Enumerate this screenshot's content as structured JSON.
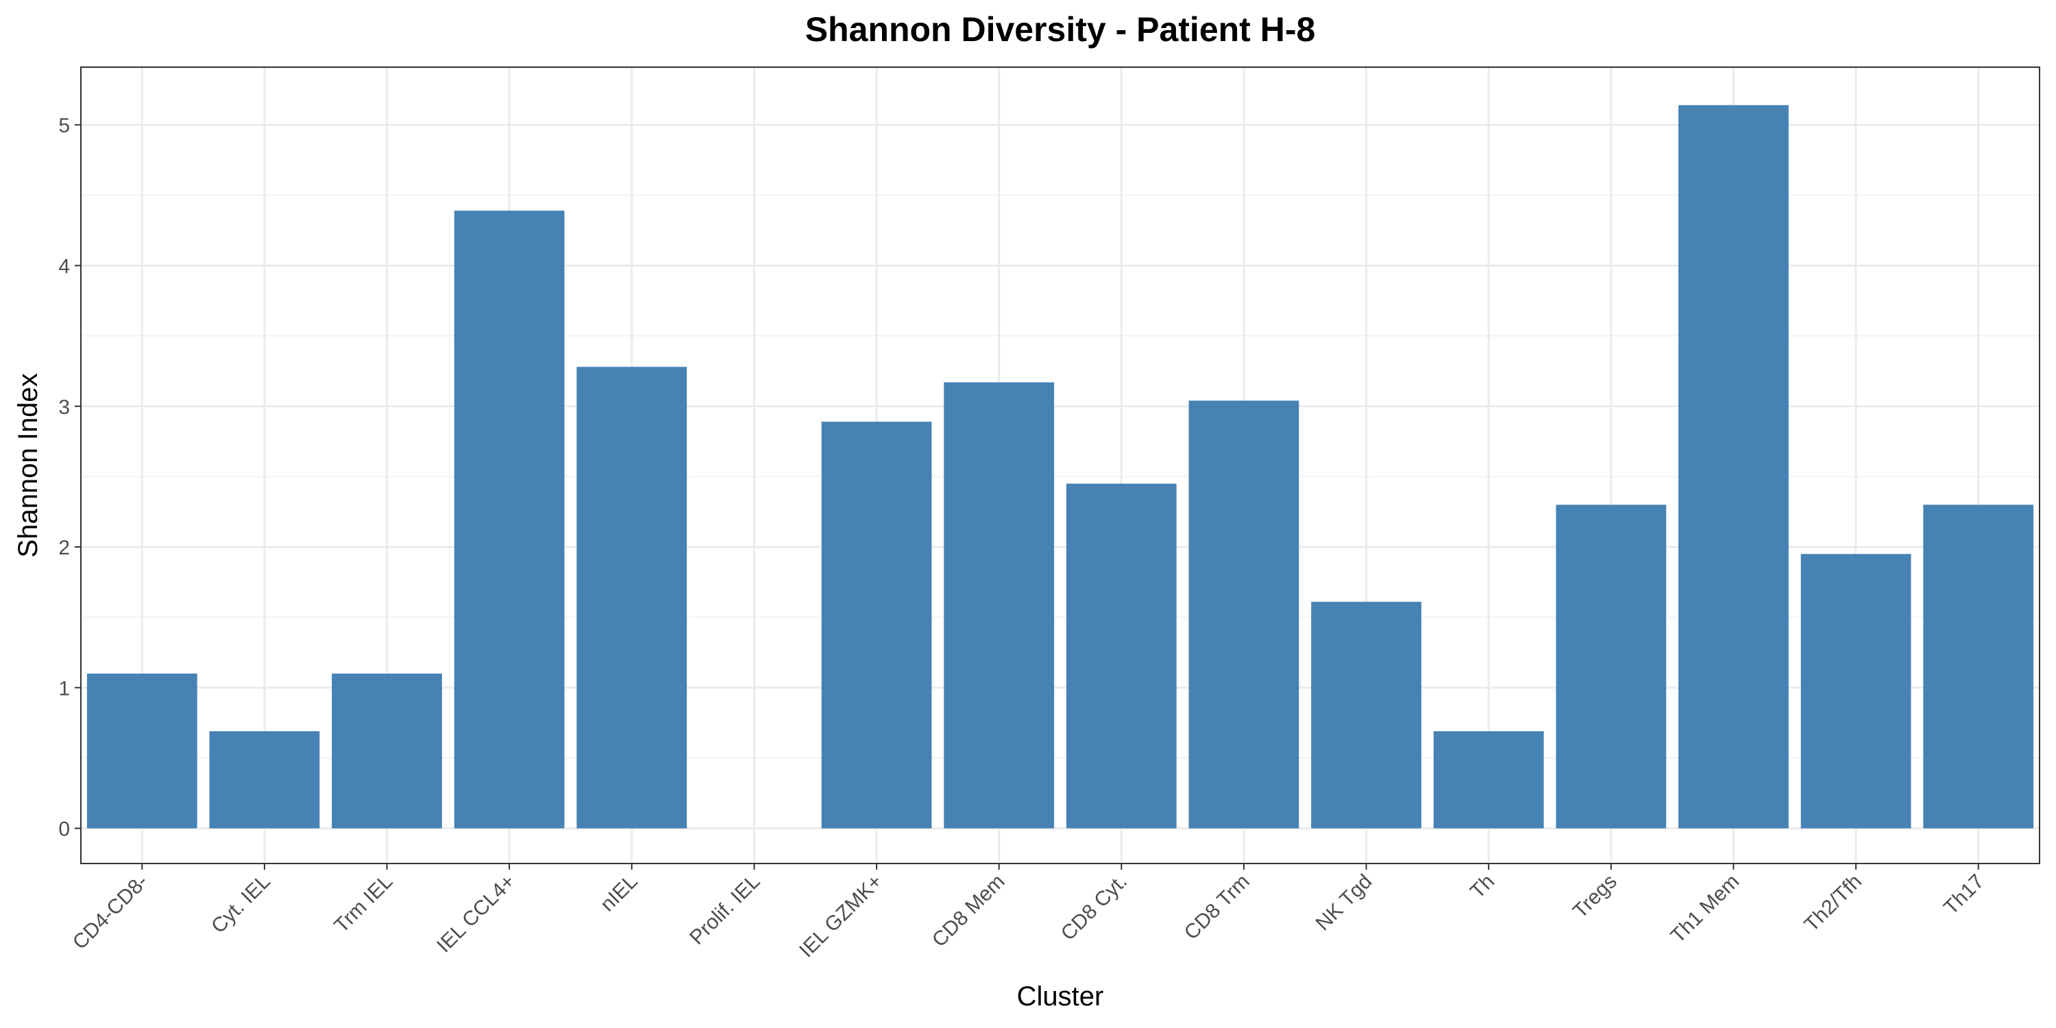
{
  "chart_data": {
    "type": "bar",
    "title": "Shannon Diversity - Patient H-8",
    "xlabel": "Cluster",
    "ylabel": "Shannon Index",
    "categories": [
      "CD4-CD8-",
      "Cyt. IEL",
      "Trm IEL",
      "IEL CCL4+",
      "nIEL",
      "Prolif. IEL",
      "IEL GZMK+",
      "CD8 Mem",
      "CD8 Cyt.",
      "CD8 Trm",
      "NK Tgd",
      "Th",
      "Tregs",
      "Th1 Mem",
      "Th2/Tfh",
      "Th17"
    ],
    "values": [
      1.1,
      0.69,
      1.1,
      4.39,
      3.28,
      0.0,
      2.89,
      3.17,
      2.45,
      3.04,
      1.61,
      0.69,
      2.3,
      5.14,
      1.95,
      2.3
    ],
    "ylim": [
      -0.25,
      5.41
    ],
    "yticks": [
      0,
      1,
      2,
      3,
      4,
      5
    ],
    "grid": true,
    "bar_color": "#4682B4"
  }
}
